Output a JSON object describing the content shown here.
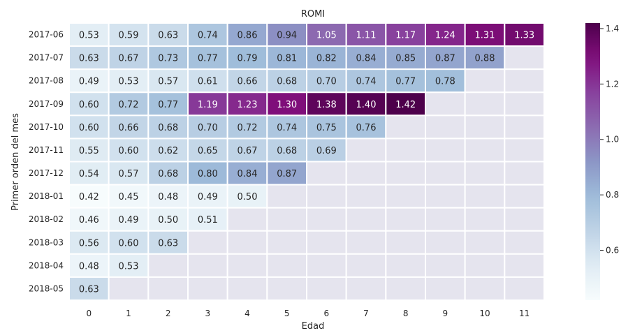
{
  "chart_data": {
    "type": "heatmap",
    "title": "ROMI",
    "xlabel": "Edad",
    "ylabel": "Primer orden del mes",
    "x_categories": [
      "0",
      "1",
      "2",
      "3",
      "4",
      "5",
      "6",
      "7",
      "8",
      "9",
      "10",
      "11"
    ],
    "y_categories": [
      "2017-06",
      "2017-07",
      "2017-08",
      "2017-09",
      "2017-10",
      "2017-11",
      "2017-12",
      "2018-01",
      "2018-02",
      "2018-03",
      "2018-04",
      "2018-05"
    ],
    "values": [
      [
        0.53,
        0.59,
        0.63,
        0.74,
        0.86,
        0.94,
        1.05,
        1.11,
        1.17,
        1.24,
        1.31,
        1.33
      ],
      [
        0.63,
        0.67,
        0.73,
        0.77,
        0.79,
        0.81,
        0.82,
        0.84,
        0.85,
        0.87,
        0.88,
        null
      ],
      [
        0.49,
        0.53,
        0.57,
        0.61,
        0.66,
        0.68,
        0.7,
        0.74,
        0.77,
        0.78,
        null,
        null
      ],
      [
        0.6,
        0.72,
        0.77,
        1.19,
        1.23,
        1.3,
        1.38,
        1.4,
        1.42,
        null,
        null,
        null
      ],
      [
        0.6,
        0.66,
        0.68,
        0.7,
        0.72,
        0.74,
        0.75,
        0.76,
        null,
        null,
        null,
        null
      ],
      [
        0.55,
        0.6,
        0.62,
        0.65,
        0.67,
        0.68,
        0.69,
        null,
        null,
        null,
        null,
        null
      ],
      [
        0.54,
        0.57,
        0.68,
        0.8,
        0.84,
        0.87,
        null,
        null,
        null,
        null,
        null,
        null
      ],
      [
        0.42,
        0.45,
        0.48,
        0.49,
        0.5,
        null,
        null,
        null,
        null,
        null,
        null,
        null
      ],
      [
        0.46,
        0.49,
        0.5,
        0.51,
        null,
        null,
        null,
        null,
        null,
        null,
        null,
        null
      ],
      [
        0.56,
        0.6,
        0.63,
        null,
        null,
        null,
        null,
        null,
        null,
        null,
        null,
        null
      ],
      [
        0.48,
        0.53,
        null,
        null,
        null,
        null,
        null,
        null,
        null,
        null,
        null,
        null
      ],
      [
        0.63,
        null,
        null,
        null,
        null,
        null,
        null,
        null,
        null,
        null,
        null,
        null
      ]
    ],
    "value_labels": [
      [
        "0.53",
        "0.59",
        "0.63",
        "0.74",
        "0.86",
        "0.94",
        "1.05",
        "1.11",
        "1.17",
        "1.24",
        "1.31",
        "1.33"
      ],
      [
        "0.63",
        "0.67",
        "0.73",
        "0.77",
        "0.79",
        "0.81",
        "0.82",
        "0.84",
        "0.85",
        "0.87",
        "0.88",
        ""
      ],
      [
        "0.49",
        "0.53",
        "0.57",
        "0.61",
        "0.66",
        "0.68",
        "0.70",
        "0.74",
        "0.77",
        "0.78",
        "",
        ""
      ],
      [
        "0.60",
        "0.72",
        "0.77",
        "1.19",
        "1.23",
        "1.30",
        "1.38",
        "1.40",
        "1.42",
        "",
        "",
        ""
      ],
      [
        "0.60",
        "0.66",
        "0.68",
        "0.70",
        "0.72",
        "0.74",
        "0.75",
        "0.76",
        "",
        "",
        "",
        ""
      ],
      [
        "0.55",
        "0.60",
        "0.62",
        "0.65",
        "0.67",
        "0.68",
        "0.69",
        "",
        "",
        "",
        "",
        ""
      ],
      [
        "0.54",
        "0.57",
        "0.68",
        "0.80",
        "0.84",
        "0.87",
        "",
        "",
        "",
        "",
        "",
        ""
      ],
      [
        "0.42",
        "0.45",
        "0.48",
        "0.49",
        "0.50",
        "",
        "",
        "",
        "",
        "",
        "",
        ""
      ],
      [
        "0.46",
        "0.49",
        "0.50",
        "0.51",
        "",
        "",
        "",
        "",
        "",
        "",
        "",
        ""
      ],
      [
        "0.56",
        "0.60",
        "0.63",
        "",
        "",
        "",
        "",
        "",
        "",
        "",
        "",
        ""
      ],
      [
        "0.48",
        "0.53",
        "",
        "",
        "",
        "",
        "",
        "",
        "",
        "",
        "",
        ""
      ],
      [
        "0.63",
        "",
        "",
        "",
        "",
        "",
        "",
        "",
        "",
        "",
        "",
        ""
      ]
    ],
    "colormap": "BuPu",
    "vmin": 0.42,
    "vmax": 1.42,
    "colorbar_ticks": [
      "0.6",
      "0.8",
      "1.0",
      "1.2",
      "1.4"
    ],
    "colorbar_tick_values": [
      0.6,
      0.8,
      1.0,
      1.2,
      1.4
    ],
    "missing_color": "#e5e4ee",
    "cell_border_color": "#ffffff",
    "grid": false,
    "legend": "colorbar-right"
  }
}
